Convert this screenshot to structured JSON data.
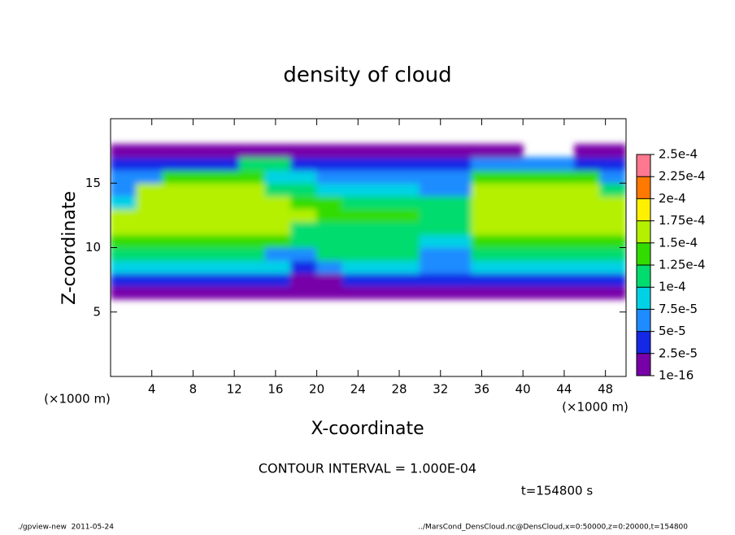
{
  "chart_data": {
    "type": "heatmap",
    "title": "density of cloud",
    "xlabel": "X-coordinate",
    "ylabel": "Z-coordinate",
    "y_unit_label": "(×1000 m)",
    "x_unit_label": "(×1000 m)",
    "contour_label": "CONTOUR INTERVAL = 1.000E-04",
    "time_label": "t=154800 s",
    "footer_left": "./gpview-new  2011-05-24",
    "footer_right": "../MarsCond_DensCloud.nc@DensCloud,x=0:50000,z=0:20000,t=154800",
    "xlim": [
      0,
      50
    ],
    "ylim": [
      0,
      20
    ],
    "xticks": [
      4,
      8,
      12,
      16,
      20,
      24,
      28,
      32,
      36,
      40,
      44,
      48
    ],
    "yticks": [
      5,
      10,
      15
    ],
    "xbins": [
      0,
      2.5,
      5,
      7.5,
      10,
      12.5,
      15,
      17.5,
      20,
      22.5,
      25,
      27.5,
      30,
      32.5,
      35,
      37.5,
      40,
      42.5,
      45,
      47.5,
      50
    ],
    "ybins": [
      6,
      7,
      8,
      9,
      10,
      11,
      12,
      13,
      14,
      15,
      16,
      17,
      18
    ],
    "values": [
      [
        2e-05,
        2e-05,
        2e-05,
        2e-05,
        2e-05,
        2e-05,
        2e-05,
        1e-05,
        2e-05,
        2e-05,
        2e-05,
        2e-05,
        2e-05,
        1e-05,
        2e-05,
        2e-05,
        2e-05,
        2e-05,
        2e-05,
        2e-05
      ],
      [
        4e-05,
        4e-05,
        4e-05,
        4e-05,
        4e-05,
        4e-05,
        4e-05,
        2e-05,
        2e-05,
        4e-05,
        4e-05,
        4e-05,
        3e-05,
        3e-05,
        4e-05,
        4e-05,
        4e-05,
        4e-05,
        4e-05,
        4e-05
      ],
      [
        8e-05,
        8e-05,
        8e-05,
        8e-05,
        8e-05,
        8e-05,
        8e-05,
        4e-05,
        6e-05,
        8e-05,
        8e-05,
        8e-05,
        5e-05,
        5e-05,
        8e-05,
        8e-05,
        8e-05,
        8e-05,
        8e-05,
        8e-05
      ],
      [
        0.00011,
        0.00011,
        0.00011,
        0.00011,
        0.00011,
        0.00011,
        7e-05,
        7e-05,
        0.00011,
        0.00011,
        0.00011,
        0.00011,
        6e-05,
        6e-05,
        0.00012,
        0.00012,
        0.00012,
        0.00012,
        0.00012,
        0.00012
      ],
      [
        0.00013,
        0.00013,
        0.00013,
        0.00013,
        0.00013,
        0.00013,
        0.00013,
        0.0001,
        0.00012,
        0.00012,
        0.00012,
        0.00012,
        9e-05,
        9e-05,
        0.00014,
        0.00014,
        0.00014,
        0.00014,
        0.00014,
        0.00014
      ],
      [
        0.00015,
        0.00015,
        0.00015,
        0.00015,
        0.00015,
        0.00015,
        0.00015,
        0.00012,
        0.00012,
        0.00012,
        0.00012,
        0.00012,
        0.00011,
        0.00011,
        0.000155,
        0.000155,
        0.000155,
        0.000155,
        0.000155,
        0.00017
      ],
      [
        0.00016,
        0.00016,
        0.00016,
        0.00016,
        0.00017,
        0.00017,
        0.00016,
        0.00016,
        0.00013,
        0.00013,
        0.00013,
        0.00013,
        0.00012,
        0.00012,
        0.00016,
        0.00016,
        0.00016,
        0.00016,
        0.00016,
        0.00016
      ],
      [
        9e-05,
        0.00016,
        0.00016,
        0.00016,
        0.00016,
        0.00016,
        0.00016,
        0.00014,
        0.00014,
        0.00012,
        0.00012,
        0.00012,
        0.0001,
        0.0001,
        0.00016,
        0.00016,
        0.00016,
        0.00016,
        0.00016,
        0.00016
      ],
      [
        6e-05,
        0.000155,
        0.000155,
        0.000155,
        0.000155,
        0.000155,
        0.00011,
        0.00011,
        8e-05,
        8e-05,
        8e-05,
        8e-05,
        7e-05,
        7e-05,
        0.000155,
        0.000155,
        0.000155,
        0.000155,
        0.000155,
        0.0001
      ],
      [
        5e-05,
        5e-05,
        0.00014,
        0.00014,
        0.00014,
        0.00014,
        8e-05,
        8e-05,
        5e-05,
        5e-05,
        5e-05,
        5e-05,
        5e-05,
        5e-05,
        0.00014,
        0.00014,
        0.00014,
        0.00014,
        0.00014,
        6e-05
      ],
      [
        3e-05,
        3e-05,
        3e-05,
        3e-05,
        3e-05,
        0.00012,
        0.00012,
        3e-05,
        3e-05,
        3e-05,
        3e-05,
        3e-05,
        3e-05,
        3e-05,
        5e-05,
        5e-05,
        5e-05,
        5e-05,
        3e-05,
        3e-05
      ],
      [
        1.5e-05,
        1.5e-05,
        1.5e-05,
        1.5e-05,
        1.5e-05,
        1.5e-05,
        1.5e-05,
        1.5e-05,
        1.5e-05,
        1.5e-05,
        1.5e-05,
        1.5e-05,
        1.5e-05,
        1.5e-05,
        1.5e-05,
        1.5e-05,
        null,
        null,
        1.5e-05,
        1.5e-05
      ]
    ],
    "colorbar": {
      "levels": [
        {
          "value": 1e-16,
          "label": "1e-16"
        },
        {
          "value": 2.5e-05,
          "label": "2.5e-5"
        },
        {
          "value": 5e-05,
          "label": "5e-5"
        },
        {
          "value": 7.5e-05,
          "label": "7.5e-5"
        },
        {
          "value": 0.0001,
          "label": "1e-4"
        },
        {
          "value": 0.000125,
          "label": "1.25e-4"
        },
        {
          "value": 0.00015,
          "label": "1.5e-4"
        },
        {
          "value": 0.000175,
          "label": "1.75e-4"
        },
        {
          "value": 0.0002,
          "label": "2e-4"
        },
        {
          "value": 0.000225,
          "label": "2.25e-4"
        },
        {
          "value": 0.00025,
          "label": "2.5e-4"
        }
      ],
      "colors": [
        "#7800a8",
        "#1428e6",
        "#1e8cff",
        "#00d2e6",
        "#00dc6e",
        "#32dc00",
        "#b4f000",
        "#fff000",
        "#ff7800",
        "#ff7890"
      ]
    }
  }
}
